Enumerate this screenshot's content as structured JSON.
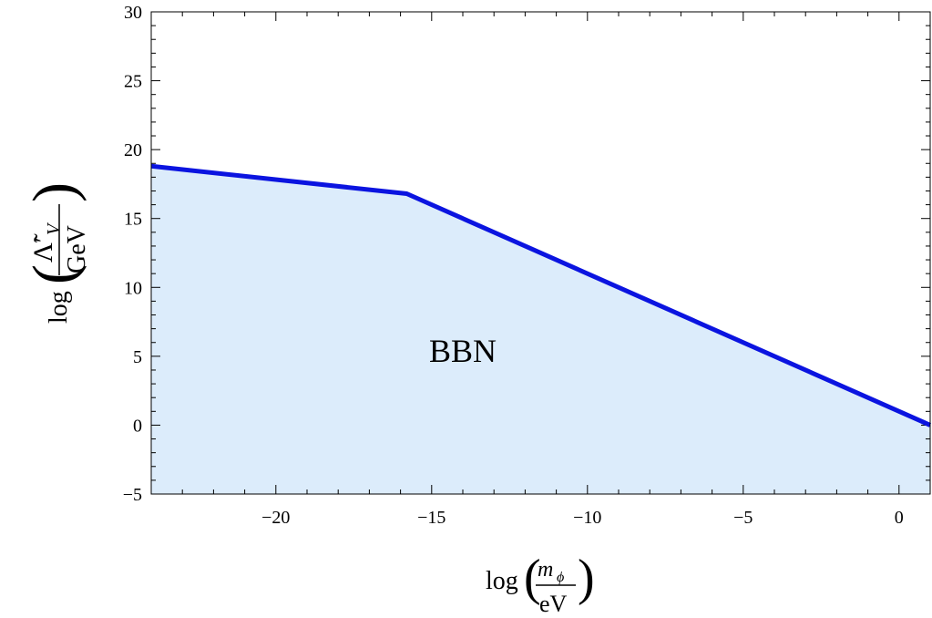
{
  "chart_data": {
    "type": "area",
    "xlim": [
      -24,
      1
    ],
    "ylim": [
      -5,
      30
    ],
    "x_major_ticks": [
      -20,
      -15,
      -10,
      -5,
      0
    ],
    "x_tick_labels": [
      "−20",
      "−15",
      "−10",
      "−5",
      "0"
    ],
    "y_major_ticks": [
      -5,
      0,
      5,
      10,
      15,
      20,
      25,
      30
    ],
    "y_tick_labels": [
      "−5",
      "0",
      "5",
      "10",
      "15",
      "20",
      "25",
      "30"
    ],
    "x_minor_step": 1,
    "y_minor_step": 1,
    "grid": false,
    "legend": "none",
    "series": [
      {
        "x": [
          -24,
          -15.8,
          1
        ],
        "y": [
          18.8,
          16.8,
          0
        ],
        "color": "#0b14e0",
        "fill_below": true,
        "fill_color": "#dcecfb"
      }
    ],
    "annotations": [
      {
        "text": "BBN",
        "x": -14,
        "y": 4.6
      }
    ],
    "xlabel": {
      "prefix": "log",
      "numerator": "m",
      "numerator_sub": "ϕ",
      "denominator": "eV"
    },
    "ylabel": {
      "prefix": "log",
      "numerator": "Λ̃′",
      "numerator_sub": "V",
      "denominator": "GeV"
    }
  }
}
